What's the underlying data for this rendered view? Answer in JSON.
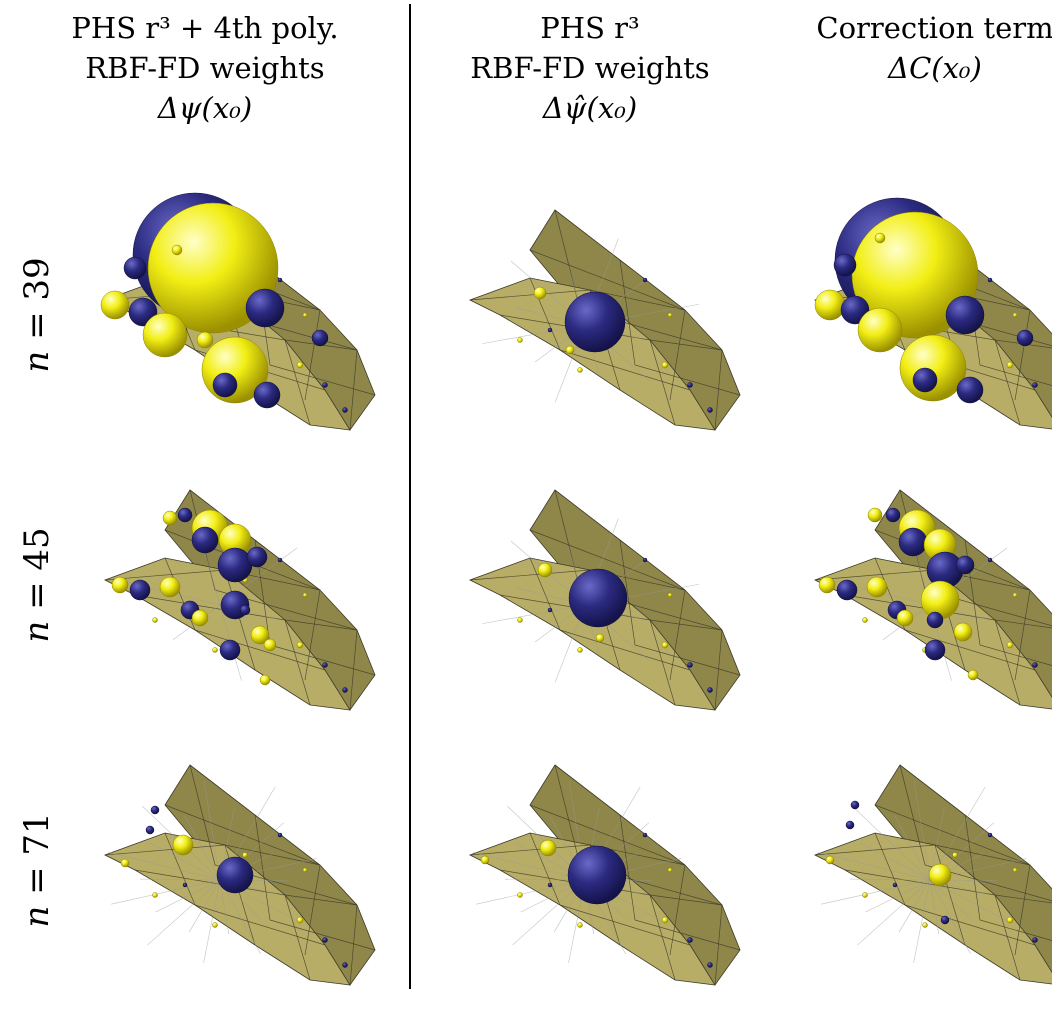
{
  "columns": [
    {
      "line1": "PHS r³ + 4th poly.",
      "line2": "RBF-FD weights",
      "line3": "Δψ(x₀)"
    },
    {
      "line1": "PHS r³",
      "line2": "RBF-FD weights",
      "line3": "Δψ̂(x₀)"
    },
    {
      "line1": "Correction term",
      "line2": "ΔC(x₀)",
      "line3": ""
    }
  ],
  "rows": [
    {
      "var": "n",
      "eq": "= 39"
    },
    {
      "var": "n",
      "eq": "= 45"
    },
    {
      "var": "n",
      "eq": "= 71"
    }
  ],
  "colors": {
    "surface_fill": "#b8ad66",
    "surface_dark": "#8f8749",
    "surface_edge": "#3b3a2a",
    "positive_sphere": "#f2ee14",
    "negative_sphere": "#2b2a80"
  }
}
